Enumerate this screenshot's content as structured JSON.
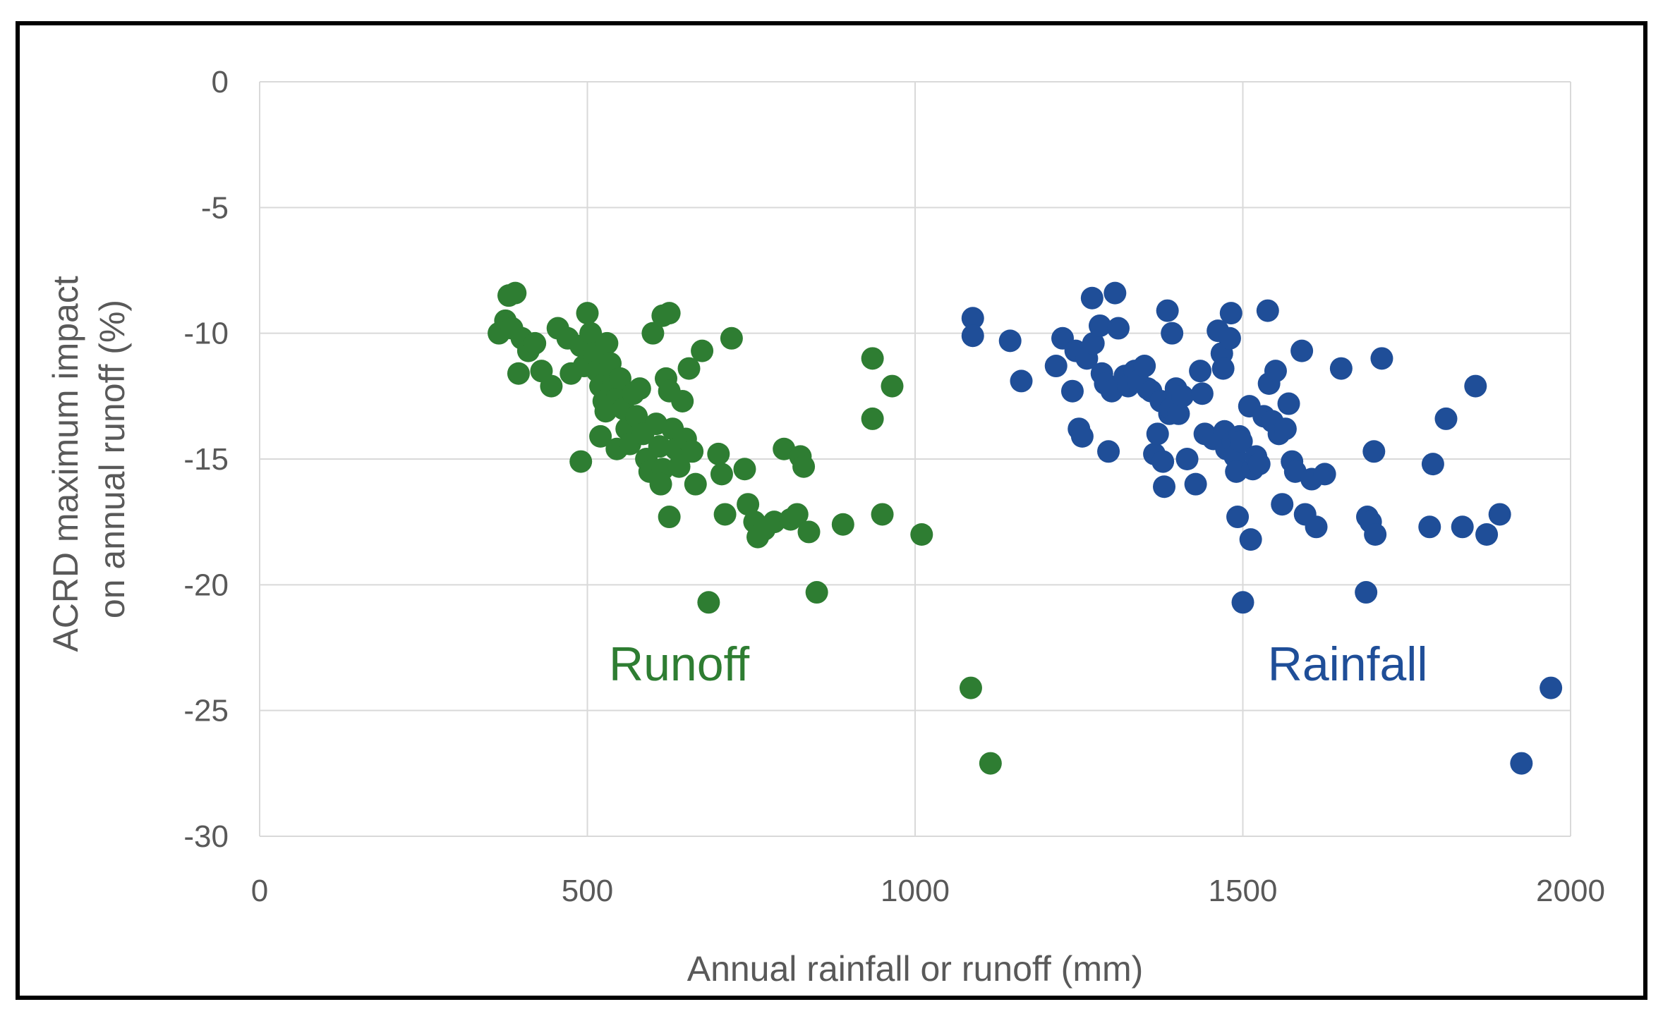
{
  "chart_data": {
    "type": "scatter",
    "title": "",
    "xlabel": "Annual rainfall or runoff (mm)",
    "ylabel_lines": [
      "ACRD maximum impact",
      "on annual runoff (%)"
    ],
    "xlim": [
      0,
      2000
    ],
    "ylim": [
      -30,
      0
    ],
    "xticks": [
      0,
      500,
      1000,
      1500,
      2000
    ],
    "yticks": [
      0,
      -5,
      -10,
      -15,
      -20,
      -25,
      -30
    ],
    "grid": true,
    "legend": "none",
    "annotations": [
      {
        "text": "Runoff",
        "x": 640,
        "y": -23.8,
        "color": "#2e7d32"
      },
      {
        "text": "Rainfall",
        "x": 1660,
        "y": -23.8,
        "color": "#1f4e98"
      }
    ],
    "series": [
      {
        "color": "#2e7d32",
        "points": [
          [
            380,
            -8.5
          ],
          [
            390,
            -8.4
          ],
          [
            375,
            -9.5
          ],
          [
            365,
            -10.0
          ],
          [
            385,
            -9.8
          ],
          [
            400,
            -10.2
          ],
          [
            410,
            -10.7
          ],
          [
            395,
            -11.6
          ],
          [
            420,
            -10.4
          ],
          [
            430,
            -11.5
          ],
          [
            445,
            -12.1
          ],
          [
            455,
            -9.8
          ],
          [
            470,
            -10.2
          ],
          [
            475,
            -11.6
          ],
          [
            490,
            -10.5
          ],
          [
            495,
            -11.3
          ],
          [
            500,
            -9.2
          ],
          [
            505,
            -10.0
          ],
          [
            510,
            -10.8
          ],
          [
            515,
            -11.5
          ],
          [
            520,
            -12.1
          ],
          [
            525,
            -12.7
          ],
          [
            530,
            -10.4
          ],
          [
            535,
            -11.2
          ],
          [
            540,
            -12.0
          ],
          [
            545,
            -12.6
          ],
          [
            528,
            -13.1
          ],
          [
            550,
            -11.8
          ],
          [
            555,
            -13.0
          ],
          [
            560,
            -13.8
          ],
          [
            520,
            -14.1
          ],
          [
            545,
            -14.6
          ],
          [
            565,
            -14.4
          ],
          [
            570,
            -12.4
          ],
          [
            575,
            -13.3
          ],
          [
            580,
            -12.2
          ],
          [
            585,
            -14.0
          ],
          [
            590,
            -15.0
          ],
          [
            595,
            -15.5
          ],
          [
            600,
            -10.0
          ],
          [
            605,
            -13.6
          ],
          [
            610,
            -14.5
          ],
          [
            615,
            -15.4
          ],
          [
            612,
            -16.0
          ],
          [
            620,
            -11.8
          ],
          [
            625,
            -12.3
          ],
          [
            630,
            -13.8
          ],
          [
            635,
            -14.6
          ],
          [
            640,
            -15.3
          ],
          [
            645,
            -12.7
          ],
          [
            650,
            -14.2
          ],
          [
            655,
            -11.4
          ],
          [
            660,
            -14.7
          ],
          [
            665,
            -16.0
          ],
          [
            615,
            -9.3
          ],
          [
            625,
            -9.2
          ],
          [
            675,
            -10.7
          ],
          [
            720,
            -10.2
          ],
          [
            490,
            -15.1
          ],
          [
            625,
            -17.3
          ],
          [
            700,
            -14.8
          ],
          [
            705,
            -15.6
          ],
          [
            710,
            -17.2
          ],
          [
            740,
            -15.4
          ],
          [
            745,
            -16.8
          ],
          [
            755,
            -17.5
          ],
          [
            760,
            -18.1
          ],
          [
            770,
            -17.8
          ],
          [
            785,
            -17.5
          ],
          [
            800,
            -14.6
          ],
          [
            810,
            -17.4
          ],
          [
            820,
            -17.2
          ],
          [
            825,
            -14.9
          ],
          [
            830,
            -15.3
          ],
          [
            838,
            -17.9
          ],
          [
            850,
            -20.3
          ],
          [
            890,
            -17.6
          ],
          [
            935,
            -11.0
          ],
          [
            935,
            -13.4
          ],
          [
            950,
            -17.2
          ],
          [
            965,
            -12.1
          ],
          [
            1010,
            -18.0
          ],
          [
            685,
            -20.7
          ],
          [
            1085,
            -24.1
          ],
          [
            1115,
            -27.1
          ]
        ]
      },
      {
        "color": "#1f4e98",
        "points": [
          [
            1088,
            -9.4
          ],
          [
            1088,
            -10.1
          ],
          [
            1145,
            -10.3
          ],
          [
            1162,
            -11.9
          ],
          [
            1215,
            -11.3
          ],
          [
            1225,
            -10.2
          ],
          [
            1240,
            -12.3
          ],
          [
            1245,
            -10.7
          ],
          [
            1250,
            -13.8
          ],
          [
            1255,
            -14.1
          ],
          [
            1262,
            -11.0
          ],
          [
            1270,
            -8.6
          ],
          [
            1272,
            -10.4
          ],
          [
            1282,
            -9.7
          ],
          [
            1285,
            -11.6
          ],
          [
            1290,
            -12.0
          ],
          [
            1295,
            -14.7
          ],
          [
            1300,
            -12.3
          ],
          [
            1305,
            -8.4
          ],
          [
            1310,
            -9.8
          ],
          [
            1320,
            -11.7
          ],
          [
            1325,
            -12.1
          ],
          [
            1335,
            -11.5
          ],
          [
            1340,
            -11.9
          ],
          [
            1350,
            -11.3
          ],
          [
            1355,
            -12.2
          ],
          [
            1360,
            -12.3
          ],
          [
            1365,
            -14.8
          ],
          [
            1370,
            -14.0
          ],
          [
            1375,
            -12.7
          ],
          [
            1378,
            -15.1
          ],
          [
            1380,
            -16.1
          ],
          [
            1385,
            -9.1
          ],
          [
            1388,
            -13.2
          ],
          [
            1390,
            -13.0
          ],
          [
            1392,
            -10.0
          ],
          [
            1398,
            -12.2
          ],
          [
            1402,
            -13.2
          ],
          [
            1408,
            -12.5
          ],
          [
            1415,
            -15.0
          ],
          [
            1428,
            -16.0
          ],
          [
            1435,
            -11.5
          ],
          [
            1438,
            -12.4
          ],
          [
            1442,
            -14.0
          ],
          [
            1455,
            -14.2
          ],
          [
            1462,
            -9.9
          ],
          [
            1468,
            -10.8
          ],
          [
            1470,
            -11.4
          ],
          [
            1472,
            -13.9
          ],
          [
            1475,
            -14.6
          ],
          [
            1480,
            -10.2
          ],
          [
            1482,
            -9.2
          ],
          [
            1485,
            -14.3
          ],
          [
            1488,
            -14.9
          ],
          [
            1490,
            -15.5
          ],
          [
            1492,
            -17.3
          ],
          [
            1495,
            -14.1
          ],
          [
            1498,
            -14.3
          ],
          [
            1500,
            -20.7
          ],
          [
            1510,
            -12.9
          ],
          [
            1512,
            -18.2
          ],
          [
            1515,
            -15.4
          ],
          [
            1520,
            -14.9
          ],
          [
            1525,
            -15.2
          ],
          [
            1532,
            -13.3
          ],
          [
            1538,
            -9.1
          ],
          [
            1540,
            -12.0
          ],
          [
            1545,
            -13.5
          ],
          [
            1550,
            -11.5
          ],
          [
            1555,
            -14.0
          ],
          [
            1560,
            -16.8
          ],
          [
            1565,
            -13.8
          ],
          [
            1570,
            -12.8
          ],
          [
            1575,
            -15.1
          ],
          [
            1580,
            -15.5
          ],
          [
            1590,
            -10.7
          ],
          [
            1595,
            -17.2
          ],
          [
            1605,
            -15.8
          ],
          [
            1612,
            -17.7
          ],
          [
            1625,
            -15.6
          ],
          [
            1650,
            -11.4
          ],
          [
            1688,
            -20.3
          ],
          [
            1690,
            -17.3
          ],
          [
            1695,
            -17.5
          ],
          [
            1700,
            -14.7
          ],
          [
            1702,
            -18.0
          ],
          [
            1712,
            -11.0
          ],
          [
            1785,
            -17.7
          ],
          [
            1790,
            -15.2
          ],
          [
            1810,
            -13.4
          ],
          [
            1835,
            -17.7
          ],
          [
            1855,
            -12.1
          ],
          [
            1872,
            -18.0
          ],
          [
            1892,
            -17.2
          ],
          [
            1925,
            -27.1
          ],
          [
            1970,
            -24.1
          ]
        ]
      }
    ]
  }
}
